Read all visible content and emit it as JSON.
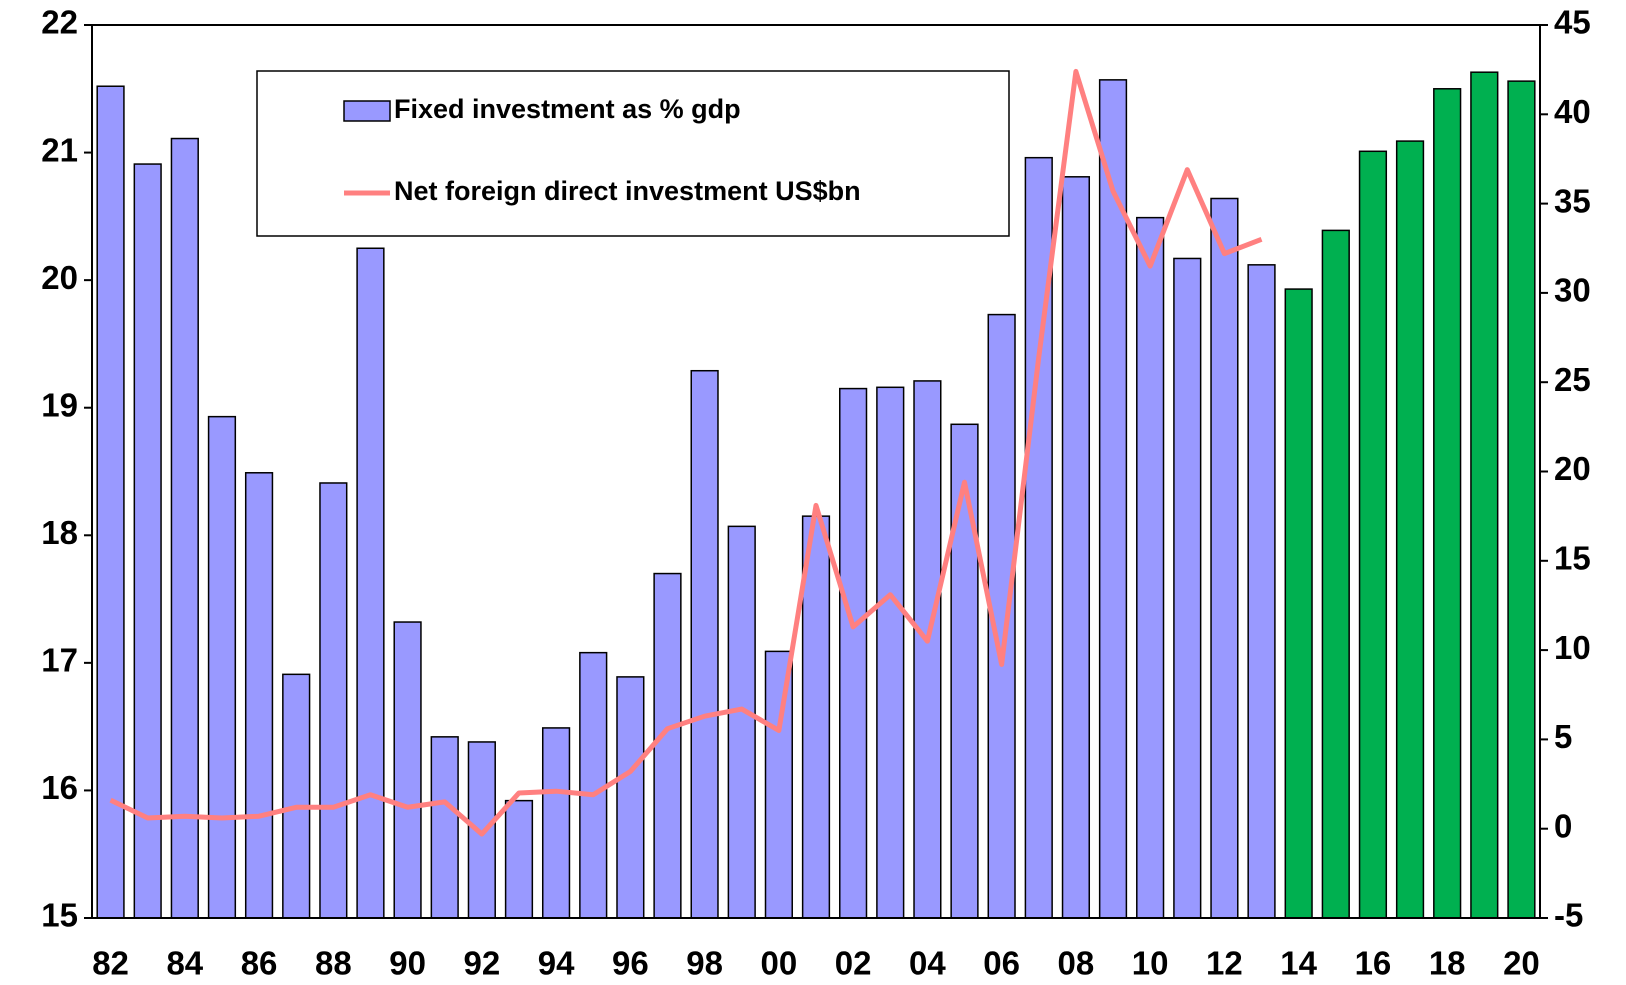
{
  "chart_data": {
    "type": "bar_line",
    "categories": [
      "82",
      null,
      "84",
      null,
      "86",
      null,
      "88",
      null,
      "90",
      null,
      "92",
      null,
      "94",
      null,
      "96",
      null,
      "98",
      null,
      "00",
      null,
      "02",
      null,
      "04",
      null,
      "06",
      null,
      "08",
      null,
      "10",
      null,
      "12",
      null,
      "14",
      null,
      "16",
      null,
      "18",
      null,
      "20"
    ],
    "series": [
      {
        "name": "Fixed investment as % gdp",
        "type": "bar",
        "color": "#9999ff",
        "colors": [
          "#9999ff",
          "#9999ff",
          "#9999ff",
          "#9999ff",
          "#9999ff",
          "#9999ff",
          "#9999ff",
          "#9999ff",
          "#9999ff",
          "#9999ff",
          "#9999ff",
          "#9999ff",
          "#9999ff",
          "#9999ff",
          "#9999ff",
          "#9999ff",
          "#9999ff",
          "#9999ff",
          "#9999ff",
          "#9999ff",
          "#9999ff",
          "#9999ff",
          "#9999ff",
          "#9999ff",
          "#9999ff",
          "#9999ff",
          "#9999ff",
          "#9999ff",
          "#9999ff",
          "#9999ff",
          "#9999ff",
          "#9999ff",
          "#00b050",
          "#00b050",
          "#00b050",
          "#00b050",
          "#00b050",
          "#00b050",
          "#00b050"
        ],
        "values": [
          21.52,
          20.91,
          21.11,
          18.93,
          18.49,
          16.91,
          18.41,
          20.25,
          17.32,
          16.42,
          16.38,
          15.92,
          16.49,
          17.08,
          16.89,
          17.7,
          19.29,
          18.07,
          17.09,
          18.15,
          19.15,
          19.16,
          19.21,
          18.87,
          19.73,
          20.96,
          20.81,
          21.57,
          20.49,
          20.17,
          20.64,
          20.12,
          19.93,
          20.39,
          21.01,
          21.09,
          21.5,
          21.63,
          21.56
        ]
      },
      {
        "name": "Net foreign direct investment US$bn",
        "type": "line",
        "color": "#ff8080",
        "axis": "y2",
        "values": [
          1.6,
          0.6,
          0.7,
          0.6,
          0.7,
          1.2,
          1.2,
          1.9,
          1.2,
          1.5,
          -0.3,
          2.0,
          2.1,
          1.9,
          3.2,
          5.6,
          6.3,
          6.7,
          5.5,
          18.1,
          11.3,
          13.1,
          10.5,
          19.4,
          9.2,
          26.4,
          42.4,
          35.7,
          31.5,
          36.9,
          32.2,
          33.0,
          null,
          null,
          null,
          null,
          null,
          null,
          null
        ]
      }
    ],
    "ylim": [
      15,
      22
    ],
    "yticks": [
      15,
      16,
      17,
      18,
      19,
      20,
      21,
      22
    ],
    "y2lim": [
      -5,
      45
    ],
    "y2ticks": [
      -5,
      0,
      5,
      10,
      15,
      20,
      25,
      30,
      35,
      40,
      45
    ],
    "legend": "top-left"
  }
}
